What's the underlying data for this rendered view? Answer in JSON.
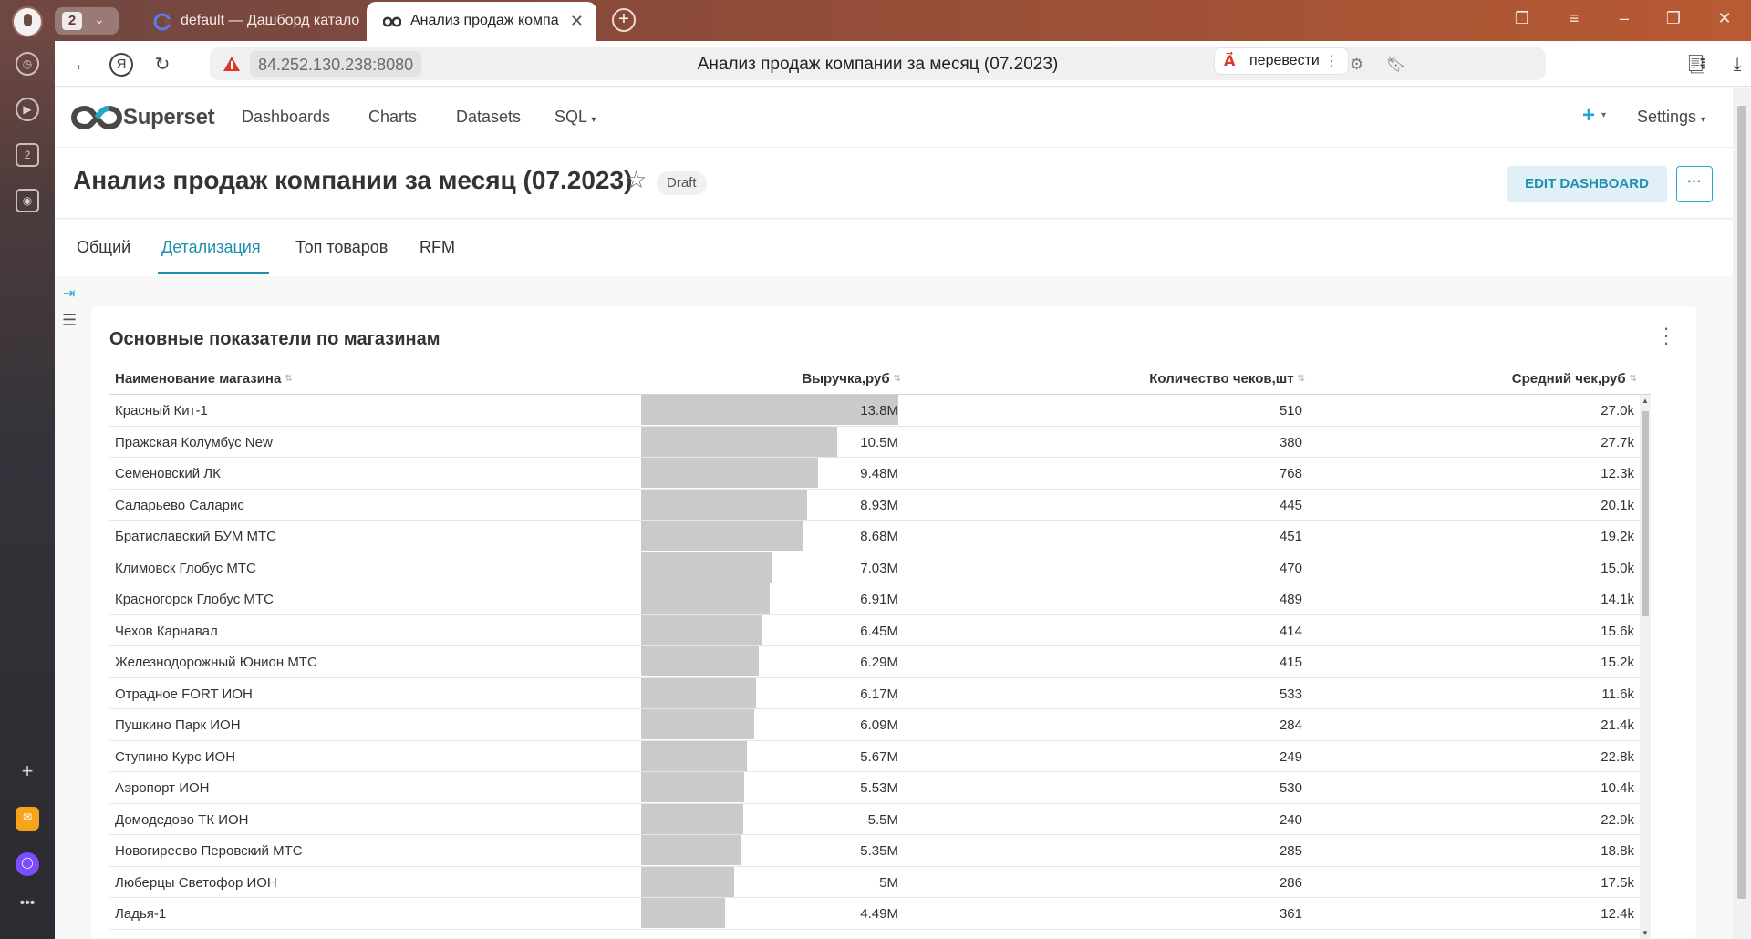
{
  "browser": {
    "tab_count": "2",
    "tabs": [
      {
        "title": "default — Дашборд катало"
      },
      {
        "title": "Анализ продаж компа"
      }
    ],
    "url": "84.252.130.238:8080",
    "page_title": "Анализ продаж компании за месяц (07.2023)",
    "translate_label": "перевести",
    "sidebar_badge": "2"
  },
  "nav": {
    "brand": "Superset",
    "items": [
      "Dashboards",
      "Charts",
      "Datasets",
      "SQL"
    ],
    "plus": "+",
    "settings": "Settings"
  },
  "dashboard": {
    "title": "Анализ продаж компании за месяц (07.2023)",
    "status": "Draft",
    "edit_label": "EDIT DASHBOARD",
    "more_label": "···",
    "tabs": [
      "Общий",
      "Детализация",
      "Топ товаров",
      "RFM"
    ],
    "active_tab": 1
  },
  "table": {
    "title": "Основные показатели по магазинам",
    "columns": [
      "Наименование магазина",
      "Выручка,руб",
      "Количество чеков,шт",
      "Средний чек,руб"
    ],
    "max_revenue": 13.8,
    "rows": [
      {
        "name": "Красный Кит-1",
        "revenue": "13.8M",
        "revenue_value": 13.8,
        "checks": "510",
        "avg": "27.0k"
      },
      {
        "name": "Пражская Колумбус New",
        "revenue": "10.5M",
        "revenue_value": 10.5,
        "checks": "380",
        "avg": "27.7k"
      },
      {
        "name": "Семеновский ЛК",
        "revenue": "9.48M",
        "revenue_value": 9.48,
        "checks": "768",
        "avg": "12.3k"
      },
      {
        "name": "Саларьево Саларис",
        "revenue": "8.93M",
        "revenue_value": 8.93,
        "checks": "445",
        "avg": "20.1k"
      },
      {
        "name": "Братиславский БУМ МТС",
        "revenue": "8.68M",
        "revenue_value": 8.68,
        "checks": "451",
        "avg": "19.2k"
      },
      {
        "name": "Климовск Глобус МТС",
        "revenue": "7.03M",
        "revenue_value": 7.03,
        "checks": "470",
        "avg": "15.0k"
      },
      {
        "name": "Красногорск Глобус МТС",
        "revenue": "6.91M",
        "revenue_value": 6.91,
        "checks": "489",
        "avg": "14.1k"
      },
      {
        "name": "Чехов Карнавал",
        "revenue": "6.45M",
        "revenue_value": 6.45,
        "checks": "414",
        "avg": "15.6k"
      },
      {
        "name": "Железнодорожный Юнион МТС",
        "revenue": "6.29M",
        "revenue_value": 6.29,
        "checks": "415",
        "avg": "15.2k"
      },
      {
        "name": "Отрадное FORT ИОН",
        "revenue": "6.17M",
        "revenue_value": 6.17,
        "checks": "533",
        "avg": "11.6k"
      },
      {
        "name": "Пушкино Парк ИОН",
        "revenue": "6.09M",
        "revenue_value": 6.09,
        "checks": "284",
        "avg": "21.4k"
      },
      {
        "name": "Ступино Курс ИОН",
        "revenue": "5.67M",
        "revenue_value": 5.67,
        "checks": "249",
        "avg": "22.8k"
      },
      {
        "name": "Аэропорт ИОН",
        "revenue": "5.53M",
        "revenue_value": 5.53,
        "checks": "530",
        "avg": "10.4k"
      },
      {
        "name": "Домодедово ТК ИОН",
        "revenue": "5.5M",
        "revenue_value": 5.5,
        "checks": "240",
        "avg": "22.9k"
      },
      {
        "name": "Новогиреево Перовский МТС",
        "revenue": "5.35M",
        "revenue_value": 5.35,
        "checks": "285",
        "avg": "18.8k"
      },
      {
        "name": "Люберцы Светофор ИОН",
        "revenue": "5M",
        "revenue_value": 5.0,
        "checks": "286",
        "avg": "17.5k"
      },
      {
        "name": "Ладья-1",
        "revenue": "4.49M",
        "revenue_value": 4.49,
        "checks": "361",
        "avg": "12.4k"
      }
    ]
  },
  "colors": {
    "accent": "#20a7c9",
    "bar": "#cacaca",
    "brand_dark": "#484848"
  }
}
